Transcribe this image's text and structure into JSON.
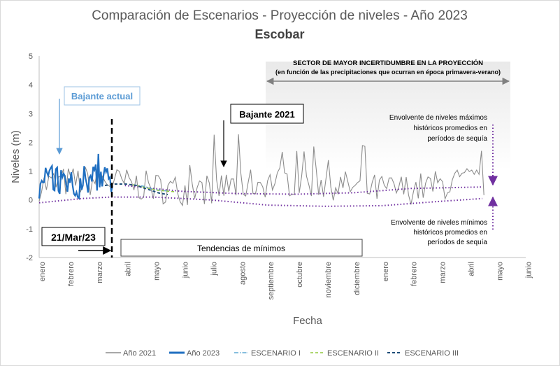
{
  "chart_data": {
    "type": "line",
    "title": "Comparación de Escenarios - Proyección de niveles - Año 2023",
    "subtitle": "Escobar",
    "xlabel": "Fecha",
    "ylabel": "Niveles (m)",
    "ylim": [
      -2,
      5
    ],
    "yticks": [
      "5",
      "4",
      "3",
      "2",
      "1",
      "0",
      "-1",
      "-2"
    ],
    "x_tick_labels": [
      "enero",
      "febrero",
      "marzo",
      "abril",
      "mayo",
      "junio",
      "julio",
      "agosto",
      "septiembre",
      "octubre",
      "noviembre",
      "diciembre",
      "enero",
      "febrero",
      "marzo",
      "abril",
      "mayo",
      "junio"
    ],
    "grid": false,
    "legend_position": "bottom",
    "series": [
      {
        "name": "Año 2021",
        "color": "#8c8c8c",
        "values_summary": "oscillating series approx. -0.3 to 2.3 m from enero to abril (following year)",
        "range": [
          -0.3,
          2.3
        ]
      },
      {
        "name": "Año 2023",
        "color": "#1f6fc1",
        "values_summary": "oscillating series approx. 0 to 1.6 m from enero to mediados de marzo",
        "range": [
          0.0,
          1.6
        ]
      },
      {
        "name": "ESCENARIO I",
        "color": "#5fa8d3",
        "dash": "dash-dot"
      },
      {
        "name": "ESCENARIO II",
        "color": "#92c83e",
        "dash": "dash"
      },
      {
        "name": "ESCENARIO III",
        "color": "#1f4e79",
        "dash": "dash"
      }
    ],
    "envelopes": {
      "upper": {
        "x": [
          3.0,
          5.0,
          7.0,
          9.0,
          11.0,
          13.0,
          15.5
        ],
        "y": [
          0.5,
          0.3,
          0.22,
          0.2,
          0.25,
          0.4,
          0.45
        ]
      },
      "lower": {
        "x": [
          0.0,
          1.5,
          2.5,
          4.0,
          6.0,
          8.0,
          10.0,
          12.0,
          14.0,
          15.5
        ],
        "y": [
          -0.1,
          0.05,
          0.1,
          0.1,
          0.0,
          -0.18,
          -0.22,
          -0.2,
          -0.05,
          0.05
        ]
      }
    },
    "annotations": {
      "sector_title": "SECTOR DE MAYOR INCERTIDUMBRE EN LA PROYECCIÓN",
      "sector_subtitle": "(en función de las precipitaciones que ocurran  en época primavera-verano)",
      "bajante_actual": "Bajante actual",
      "bajante_2021": "Bajante 2021",
      "fecha_corte": "21/Mar/23",
      "tendencias": "Tendencias de mínimos",
      "env_max": [
        "Envolvente de niveles máximos",
        "históricos promedios en",
        "períodos de sequía"
      ],
      "env_min": [
        "Envolvente de niveles mínimos",
        "históricos promedios en",
        "períodos de sequía"
      ]
    }
  }
}
